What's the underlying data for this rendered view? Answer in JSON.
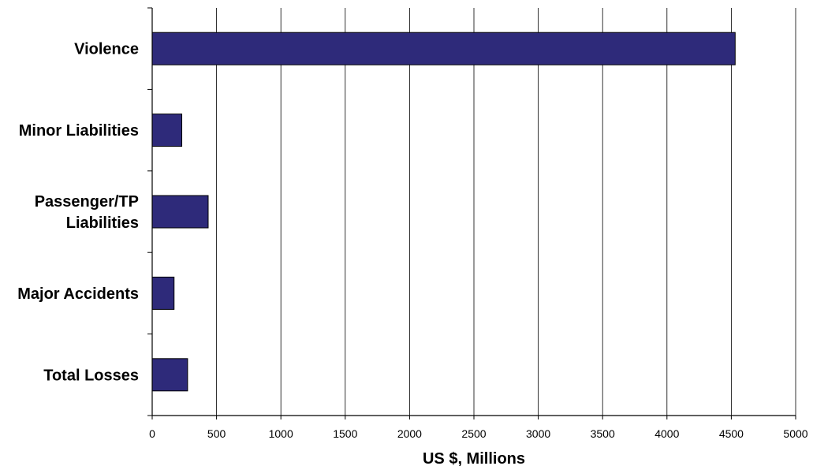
{
  "chart_data": {
    "type": "bar",
    "orientation": "horizontal",
    "title": "",
    "xlabel": "US $, Millions",
    "ylabel": "",
    "categories": [
      [
        "Violence"
      ],
      [
        "Minor Liabilities"
      ],
      [
        "Passenger/TP",
        "Liabilities"
      ],
      [
        "Major Accidents"
      ],
      [
        "Total Losses"
      ]
    ],
    "values": [
      4530,
      230,
      435,
      170,
      275
    ],
    "xlim": [
      0,
      5000
    ],
    "xticks": [
      "0",
      "500",
      "1000",
      "1500",
      "2000",
      "2500",
      "3000",
      "3500",
      "4000",
      "4500",
      "5000"
    ],
    "grid": "vertical",
    "legend": "none",
    "colors": {
      "bar_fill": "#2e2a7a",
      "bar_stroke": "#000000",
      "grid": "#000000",
      "axis": "#000000"
    }
  }
}
